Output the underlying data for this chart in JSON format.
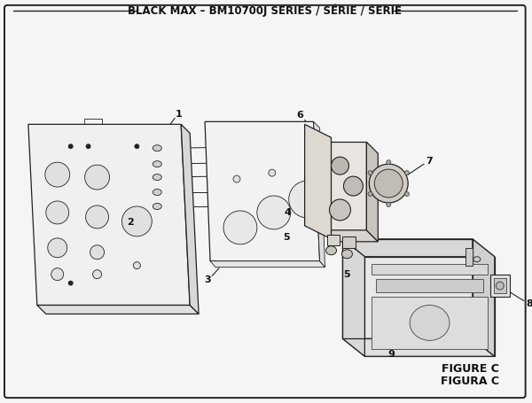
{
  "title": "BLACK MAX – BM10700J SERIES / SÉRIE / SERIE",
  "figure_label": "FIGURE C",
  "figura_label": "FIGURA C",
  "bg_color": "#f5f5f5",
  "line_color": "#222222",
  "title_fontsize": 8.5,
  "label_fontsize": 8,
  "fig_label_fontsize": 9
}
